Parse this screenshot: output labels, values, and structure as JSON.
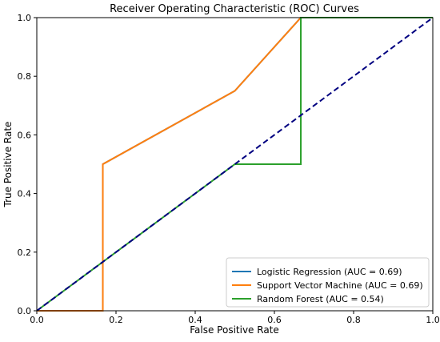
{
  "chart_data": {
    "type": "line",
    "title": "Receiver Operating Characteristic (ROC) Curves",
    "xlabel": "False Positive Rate",
    "ylabel": "True Positive Rate",
    "xlim": [
      0.0,
      1.0
    ],
    "ylim": [
      0.0,
      1.0
    ],
    "xticks": [
      "0.0",
      "0.2",
      "0.4",
      "0.6",
      "0.8",
      "1.0"
    ],
    "yticks": [
      "0.0",
      "0.2",
      "0.4",
      "0.6",
      "0.8",
      "1.0"
    ],
    "grid": false,
    "legend_position": "bottom-right",
    "series": [
      {
        "name": "Logistic Regression (AUC = 0.69)",
        "color": "#1f77b4",
        "points": [
          [
            0.0,
            0.0
          ],
          [
            0.1667,
            0.0
          ],
          [
            0.1667,
            0.5
          ],
          [
            0.5,
            0.75
          ],
          [
            0.6667,
            1.0
          ],
          [
            1.0,
            1.0
          ]
        ]
      },
      {
        "name": "Support Vector Machine (AUC = 0.69)",
        "color": "#ff7f0e",
        "points": [
          [
            0.0,
            0.0
          ],
          [
            0.1667,
            0.0
          ],
          [
            0.1667,
            0.5
          ],
          [
            0.5,
            0.75
          ],
          [
            0.6667,
            1.0
          ],
          [
            1.0,
            1.0
          ]
        ]
      },
      {
        "name": "Random Forest (AUC = 0.54)",
        "color": "#2ca02c",
        "points": [
          [
            0.0,
            0.0
          ],
          [
            0.5,
            0.5
          ],
          [
            0.6667,
            0.5
          ],
          [
            0.6667,
            1.0
          ],
          [
            1.0,
            1.0
          ]
        ]
      }
    ],
    "reference_line": {
      "style": "dashed",
      "color": "#000080",
      "points": [
        [
          0.0,
          0.0
        ],
        [
          1.0,
          1.0
        ]
      ]
    }
  }
}
